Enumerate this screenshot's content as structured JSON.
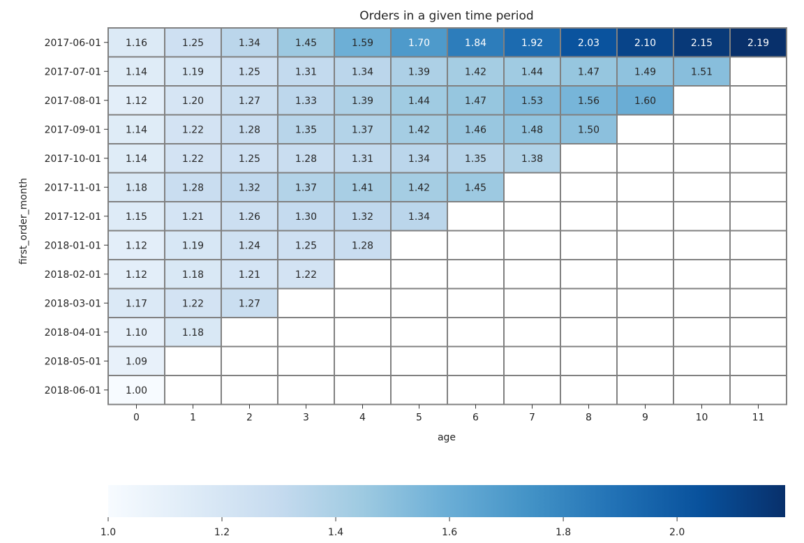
{
  "chart_data": {
    "type": "heatmap",
    "title": "Orders in a given time period",
    "xlabel": "age",
    "ylabel": "first_order_month",
    "x": [
      "0",
      "1",
      "2",
      "3",
      "4",
      "5",
      "6",
      "7",
      "8",
      "9",
      "10",
      "11"
    ],
    "y": [
      "2017-06-01",
      "2017-07-01",
      "2017-08-01",
      "2017-09-01",
      "2017-10-01",
      "2017-11-01",
      "2017-12-01",
      "2018-01-01",
      "2018-02-01",
      "2018-03-01",
      "2018-04-01",
      "2018-05-01",
      "2018-06-01"
    ],
    "values": [
      [
        1.16,
        1.25,
        1.34,
        1.45,
        1.59,
        1.7,
        1.84,
        1.92,
        2.03,
        2.1,
        2.15,
        2.19
      ],
      [
        1.14,
        1.19,
        1.25,
        1.31,
        1.34,
        1.39,
        1.42,
        1.44,
        1.47,
        1.49,
        1.51,
        null
      ],
      [
        1.12,
        1.2,
        1.27,
        1.33,
        1.39,
        1.44,
        1.47,
        1.53,
        1.56,
        1.6,
        null,
        null
      ],
      [
        1.14,
        1.22,
        1.28,
        1.35,
        1.37,
        1.42,
        1.46,
        1.48,
        1.5,
        null,
        null,
        null
      ],
      [
        1.14,
        1.22,
        1.25,
        1.28,
        1.31,
        1.34,
        1.35,
        1.38,
        null,
        null,
        null,
        null
      ],
      [
        1.18,
        1.28,
        1.32,
        1.37,
        1.41,
        1.42,
        1.45,
        null,
        null,
        null,
        null,
        null
      ],
      [
        1.15,
        1.21,
        1.26,
        1.3,
        1.32,
        1.34,
        null,
        null,
        null,
        null,
        null,
        null
      ],
      [
        1.12,
        1.19,
        1.24,
        1.25,
        1.28,
        null,
        null,
        null,
        null,
        null,
        null,
        null
      ],
      [
        1.12,
        1.18,
        1.21,
        1.22,
        null,
        null,
        null,
        null,
        null,
        null,
        null,
        null
      ],
      [
        1.17,
        1.22,
        1.27,
        null,
        null,
        null,
        null,
        null,
        null,
        null,
        null,
        null
      ],
      [
        1.1,
        1.18,
        null,
        null,
        null,
        null,
        null,
        null,
        null,
        null,
        null,
        null
      ],
      [
        1.09,
        null,
        null,
        null,
        null,
        null,
        null,
        null,
        null,
        null,
        null,
        null
      ],
      [
        1.0,
        null,
        null,
        null,
        null,
        null,
        null,
        null,
        null,
        null,
        null,
        null
      ]
    ],
    "value_format": "2 decimals",
    "colormap": "Blues",
    "colorbar": {
      "orientation": "horizontal",
      "position": "bottom",
      "range": [
        1.0,
        2.19
      ],
      "ticks": [
        1.0,
        1.2,
        1.4,
        1.6,
        1.8,
        2.0
      ],
      "tick_labels": [
        "1.0",
        "1.2",
        "1.4",
        "1.6",
        "1.8",
        "2.0"
      ]
    },
    "cell_border_color": "#808080",
    "missing_color": "#ffffff"
  }
}
